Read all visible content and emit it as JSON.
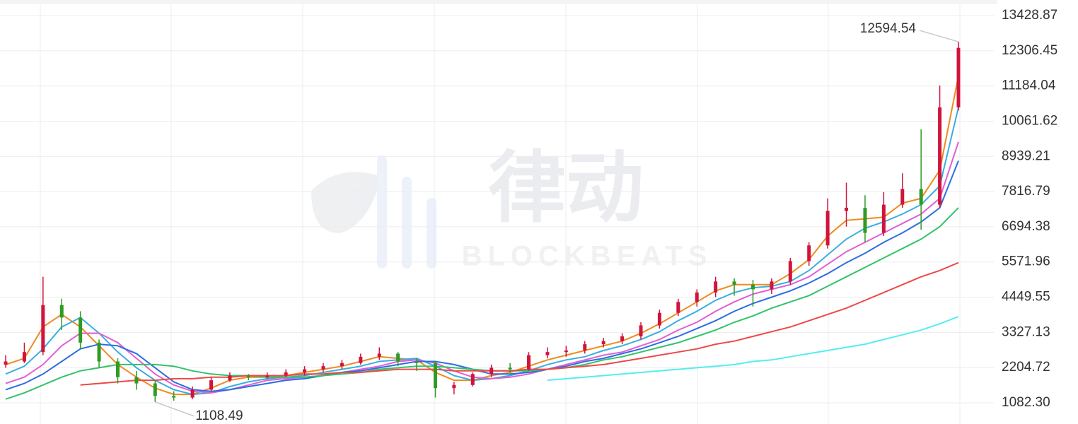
{
  "chart_data": {
    "type": "candlestick",
    "watermark": "律动",
    "watermark_sub": "BLOCKBEATS",
    "up_color": "#d0143c",
    "down_color": "#2f9a24",
    "candles": {
      "open": [
        2300,
        2400,
        2700,
        4200,
        3800,
        3000,
        2400,
        1900,
        1700,
        1300,
        1250,
        1500,
        1800,
        1950,
        1900,
        1950,
        2050,
        2150,
        2250,
        2350,
        2550,
        2650,
        2400,
        2350,
        1550,
        1650,
        2000,
        2200,
        2150,
        2600,
        2700,
        2750,
        2950,
        3050,
        3200,
        3550,
        3950,
        4300,
        4600,
        4950,
        4850,
        4700,
        4950,
        5600,
        6100,
        7200,
        7300,
        6500,
        7400,
        7900,
        7400,
        10500
      ],
      "high": [
        2600,
        3000,
        5100,
        4400,
        4000,
        3100,
        2500,
        2100,
        1800,
        1450,
        1600,
        1900,
        2050,
        2000,
        2050,
        2150,
        2250,
        2350,
        2450,
        2650,
        2850,
        2700,
        2500,
        2400,
        1750,
        2050,
        2300,
        2350,
        2700,
        2850,
        2900,
        3050,
        3150,
        3300,
        3650,
        4050,
        4400,
        4700,
        5100,
        5050,
        5000,
        5050,
        5700,
        6200,
        7600,
        8100,
        7700,
        7800,
        8400,
        9800,
        11200,
        12594.54
      ],
      "low": [
        2200,
        2350,
        2600,
        3400,
        2800,
        2200,
        1700,
        1500,
        1108.49,
        1150,
        1200,
        1450,
        1750,
        1800,
        1850,
        1900,
        1950,
        2050,
        2150,
        2300,
        2450,
        2250,
        2100,
        1250,
        1350,
        1600,
        1900,
        2050,
        2100,
        2500,
        2550,
        2650,
        2850,
        2950,
        3100,
        3450,
        3850,
        4150,
        4450,
        4500,
        4150,
        4550,
        4850,
        5450,
        6000,
        6700,
        6200,
        6400,
        7300,
        6600,
        7300,
        10400
      ],
      "close": [
        2400,
        2700,
        4200,
        3800,
        3000,
        2400,
        1900,
        1700,
        1300,
        1250,
        1500,
        1800,
        1950,
        1900,
        1950,
        2050,
        2150,
        2250,
        2350,
        2550,
        2650,
        2400,
        2350,
        1550,
        1650,
        2000,
        2200,
        2150,
        2600,
        2700,
        2750,
        2950,
        3050,
        3200,
        3550,
        3950,
        4300,
        4600,
        4950,
        4850,
        4700,
        4950,
        5600,
        6100,
        7200,
        7300,
        6500,
        7400,
        7900,
        7400,
        10500,
        12400
      ]
    },
    "series": [
      {
        "color": "#f08a1c",
        "values": [
          2300,
          2500,
          3500,
          3900,
          3500,
          2900,
          2300,
          1900,
          1550,
          1350,
          1350,
          1550,
          1800,
          1900,
          1900,
          1950,
          2050,
          2150,
          2250,
          2400,
          2550,
          2500,
          2450,
          2050,
          1800,
          1800,
          1950,
          2050,
          2250,
          2450,
          2600,
          2750,
          2900,
          3050,
          3300,
          3600,
          3950,
          4300,
          4650,
          4850,
          4850,
          4850,
          5200,
          5650,
          6400,
          6900,
          6950,
          7000,
          7450,
          7600,
          8500,
          11500
        ]
      },
      {
        "color": "#3aaee0",
        "values": [
          2000,
          2250,
          2800,
          3500,
          3800,
          3300,
          2700,
          2200,
          1800,
          1500,
          1350,
          1400,
          1600,
          1750,
          1850,
          1900,
          1950,
          2050,
          2150,
          2250,
          2400,
          2450,
          2500,
          2250,
          1950,
          1800,
          1850,
          1950,
          2100,
          2300,
          2450,
          2550,
          2750,
          2900,
          3100,
          3350,
          3700,
          4000,
          4350,
          4600,
          4750,
          4800,
          4950,
          5300,
          5800,
          6300,
          6650,
          6850,
          7100,
          7400,
          8000,
          10500
        ]
      },
      {
        "color": "#e15fd3",
        "values": [
          1700,
          1900,
          2300,
          2900,
          3300,
          3300,
          3000,
          2500,
          2000,
          1650,
          1450,
          1400,
          1500,
          1650,
          1800,
          1850,
          1900,
          1950,
          2050,
          2150,
          2250,
          2400,
          2450,
          2350,
          2100,
          1900,
          1850,
          1900,
          2000,
          2150,
          2300,
          2450,
          2600,
          2700,
          2900,
          3100,
          3400,
          3650,
          4000,
          4300,
          4550,
          4700,
          4850,
          5100,
          5500,
          5900,
          6200,
          6500,
          6800,
          7100,
          7600,
          9400
        ]
      },
      {
        "color": "#2d6de0",
        "values": [
          1500,
          1700,
          2000,
          2400,
          2800,
          2950,
          2900,
          2650,
          2200,
          1750,
          1500,
          1450,
          1500,
          1600,
          1700,
          1800,
          1850,
          1950,
          2050,
          2100,
          2200,
          2300,
          2400,
          2400,
          2300,
          2150,
          2000,
          2000,
          2050,
          2150,
          2250,
          2400,
          2500,
          2650,
          2800,
          3000,
          3200,
          3450,
          3700,
          4000,
          4250,
          4450,
          4650,
          4900,
          5200,
          5550,
          5850,
          6200,
          6500,
          6850,
          7300,
          8800
        ]
      },
      {
        "color": "#33c26a",
        "values": [
          1200,
          1400,
          1650,
          1900,
          2100,
          2200,
          2300,
          2300,
          2300,
          2250,
          2100,
          2000,
          1950,
          1950,
          1900,
          1900,
          1900,
          1950,
          2000,
          2050,
          2150,
          2200,
          2250,
          2250,
          2200,
          2150,
          2100,
          2100,
          2100,
          2150,
          2200,
          2300,
          2450,
          2550,
          2700,
          2850,
          3000,
          3200,
          3400,
          3650,
          3850,
          4100,
          4300,
          4500,
          4800,
          5100,
          5400,
          5700,
          6000,
          6300,
          6700,
          7300
        ]
      },
      {
        "color": "#ee4848",
        "values": [
          null,
          null,
          null,
          null,
          1650,
          1700,
          1750,
          1800,
          1800,
          1850,
          1850,
          1900,
          1900,
          1950,
          1950,
          1950,
          2000,
          2000,
          2050,
          2050,
          2100,
          2150,
          2150,
          2150,
          2100,
          2100,
          2100,
          2100,
          2150,
          2150,
          2200,
          2250,
          2300,
          2400,
          2500,
          2600,
          2700,
          2800,
          2950,
          3050,
          3200,
          3350,
          3500,
          3700,
          3900,
          4100,
          4350,
          4600,
          4850,
          5100,
          5300,
          5550
        ]
      },
      {
        "color": "#52eef0",
        "values": [
          null,
          null,
          null,
          null,
          null,
          null,
          null,
          null,
          null,
          null,
          null,
          null,
          null,
          null,
          null,
          null,
          null,
          null,
          null,
          null,
          null,
          null,
          null,
          null,
          null,
          null,
          null,
          null,
          null,
          1800,
          1850,
          1900,
          1950,
          2000,
          2050,
          2100,
          2150,
          2200,
          2250,
          2300,
          2400,
          2450,
          2550,
          2650,
          2750,
          2850,
          2950,
          3100,
          3250,
          3400,
          3600,
          3830
        ]
      }
    ],
    "annotate_extremes": true,
    "ylim": [
      406,
      13925
    ],
    "yticks": [
      13428.87,
      12306.45,
      11184.04,
      10061.62,
      8939.21,
      7816.79,
      6694.38,
      5571.96,
      4449.55,
      3327.13,
      2204.72,
      {
        "value": 1082.3,
        "label": "1082.30"
      }
    ],
    "grid": true
  }
}
